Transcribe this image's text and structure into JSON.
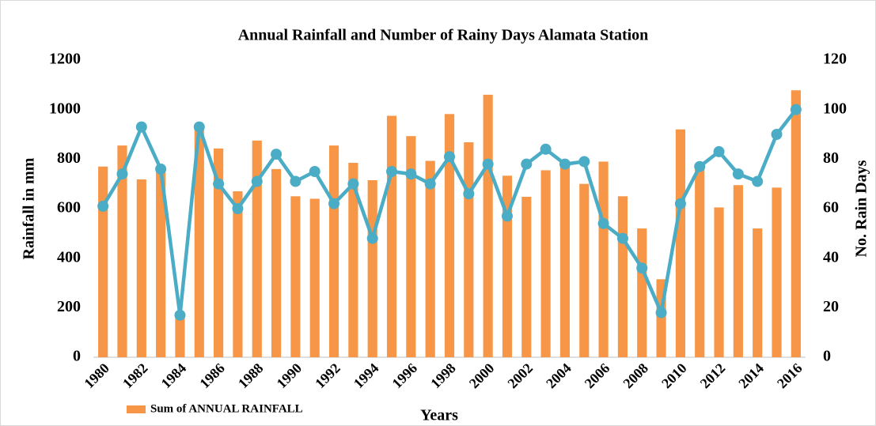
{
  "chart_data": {
    "type": "combo",
    "title": "Annual Rainfall and Number of Rainy Days Alamata Station",
    "x_label": "Years",
    "y_label": "Rainfall in mm",
    "y2_label": "No. Rain Days",
    "categories": [
      "1980",
      null,
      "1982",
      null,
      "1984",
      null,
      "1986",
      null,
      "1988",
      null,
      "1990",
      null,
      "1992",
      null,
      "1994",
      null,
      "1996",
      null,
      "1998",
      null,
      "2000",
      null,
      "2002",
      null,
      "2004",
      null,
      "2006",
      null,
      "2008",
      null,
      "2010",
      null,
      "2012",
      null,
      "2014",
      null,
      "2016"
    ],
    "series": [
      {
        "name": "Sum of ANNUAL RAINFALL",
        "type": "bar",
        "color": "#f79646",
        "values": [
          770,
          855,
          718,
          765,
          170,
          930,
          843,
          670,
          875,
          760,
          650,
          640,
          855,
          785,
          715,
          975,
          893,
          793,
          982,
          868,
          1060,
          733,
          648,
          755,
          790,
          700,
          790,
          650,
          520,
          315,
          920,
          770,
          605,
          695,
          520,
          685,
          1078
        ]
      },
      {
        "type": "line",
        "axis": "y2",
        "color": "#4bacc6",
        "values": [
          61,
          74,
          93,
          76,
          17,
          93,
          70,
          60,
          71,
          82,
          71,
          75,
          62,
          70,
          48,
          75,
          74,
          70,
          81,
          66,
          78,
          57,
          78,
          84,
          78,
          79,
          54,
          48,
          36,
          18,
          62,
          77,
          83,
          74,
          71,
          90,
          100
        ]
      }
    ],
    "ylim": [
      0,
      1200
    ],
    "yticks": [
      0,
      200,
      400,
      600,
      800,
      1000,
      1200
    ],
    "y2lim": [
      0,
      120
    ],
    "y2ticks": [
      0,
      20,
      40,
      60,
      80,
      100,
      120
    ],
    "grid": false,
    "legend": "bottom-left"
  }
}
